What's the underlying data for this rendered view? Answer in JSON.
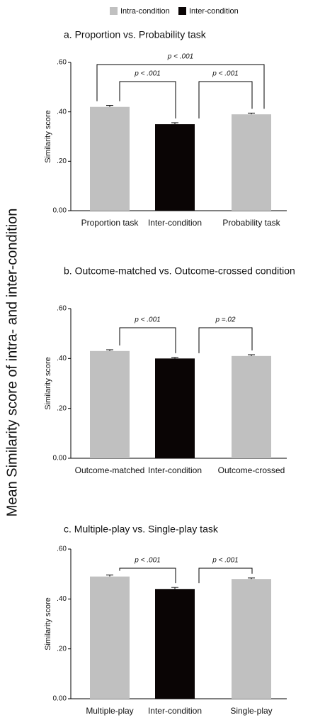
{
  "legend": [
    {
      "name": "Intra-condition",
      "color": "#c0c0c0"
    },
    {
      "name": "Inter-condition",
      "color": "#0a0505"
    }
  ],
  "ylabel": "Mean Similarity score of intra- and inter-condition",
  "chart_data": [
    {
      "type": "bar",
      "title": "a. Proportion vs. Probability task",
      "ylabel": "Similarity score",
      "categories": [
        "Proportion task",
        "Inter-condition",
        "Probability task"
      ],
      "values": [
        0.42,
        0.35,
        0.39
      ],
      "errors": [
        0.006,
        0.006,
        0.005
      ],
      "colors": [
        "#c0c0c0",
        "#0a0505",
        "#c0c0c0"
      ],
      "ylim": [
        0,
        0.6
      ],
      "yticks": [
        {
          "value": 0,
          "label": "0.00"
        },
        {
          "value": 0.2,
          "label": ".20"
        },
        {
          "value": 0.4,
          "label": ".40"
        },
        {
          "value": 0.6,
          "label": ".60"
        }
      ],
      "annotations": [
        {
          "text": "p < .001",
          "between": [
            0,
            2
          ]
        },
        {
          "text": "p < .001",
          "between": [
            0,
            1
          ]
        },
        {
          "text": "p < .001",
          "between": [
            1,
            2
          ]
        }
      ]
    },
    {
      "type": "bar",
      "title": "b. Outcome-matched vs. Outcome-crossed condition",
      "ylabel": "Similarity score",
      "categories": [
        "Outcome-matched",
        "Inter-condition",
        "Outcome-crossed"
      ],
      "values": [
        0.43,
        0.4,
        0.41
      ],
      "errors": [
        0.005,
        0.004,
        0.005
      ],
      "colors": [
        "#c0c0c0",
        "#0a0505",
        "#c0c0c0"
      ],
      "ylim": [
        0,
        0.6
      ],
      "yticks": [
        {
          "value": 0,
          "label": "0.00"
        },
        {
          "value": 0.2,
          "label": ".20"
        },
        {
          "value": 0.4,
          "label": ".40"
        },
        {
          "value": 0.6,
          "label": ".60"
        }
      ],
      "annotations": [
        {
          "text": "p < .001",
          "between": [
            0,
            1
          ]
        },
        {
          "text": "p =.02",
          "between": [
            1,
            2
          ]
        }
      ]
    },
    {
      "type": "bar",
      "title": "c. Multiple-play vs. Single-play task",
      "ylabel": "Similarity score",
      "categories": [
        "Multiple-play",
        "Inter-condition",
        "Single-play"
      ],
      "values": [
        0.49,
        0.44,
        0.48
      ],
      "errors": [
        0.006,
        0.006,
        0.004
      ],
      "colors": [
        "#c0c0c0",
        "#0a0505",
        "#c0c0c0"
      ],
      "ylim": [
        0,
        0.6
      ],
      "yticks": [
        {
          "value": 0,
          "label": "0.00"
        },
        {
          "value": 0.2,
          "label": ".20"
        },
        {
          "value": 0.4,
          "label": ".40"
        },
        {
          "value": 0.6,
          "label": ".60"
        }
      ],
      "annotations": [
        {
          "text": "p < .001",
          "between": [
            0,
            1
          ]
        },
        {
          "text": "p < .001",
          "between": [
            1,
            2
          ]
        }
      ]
    }
  ]
}
